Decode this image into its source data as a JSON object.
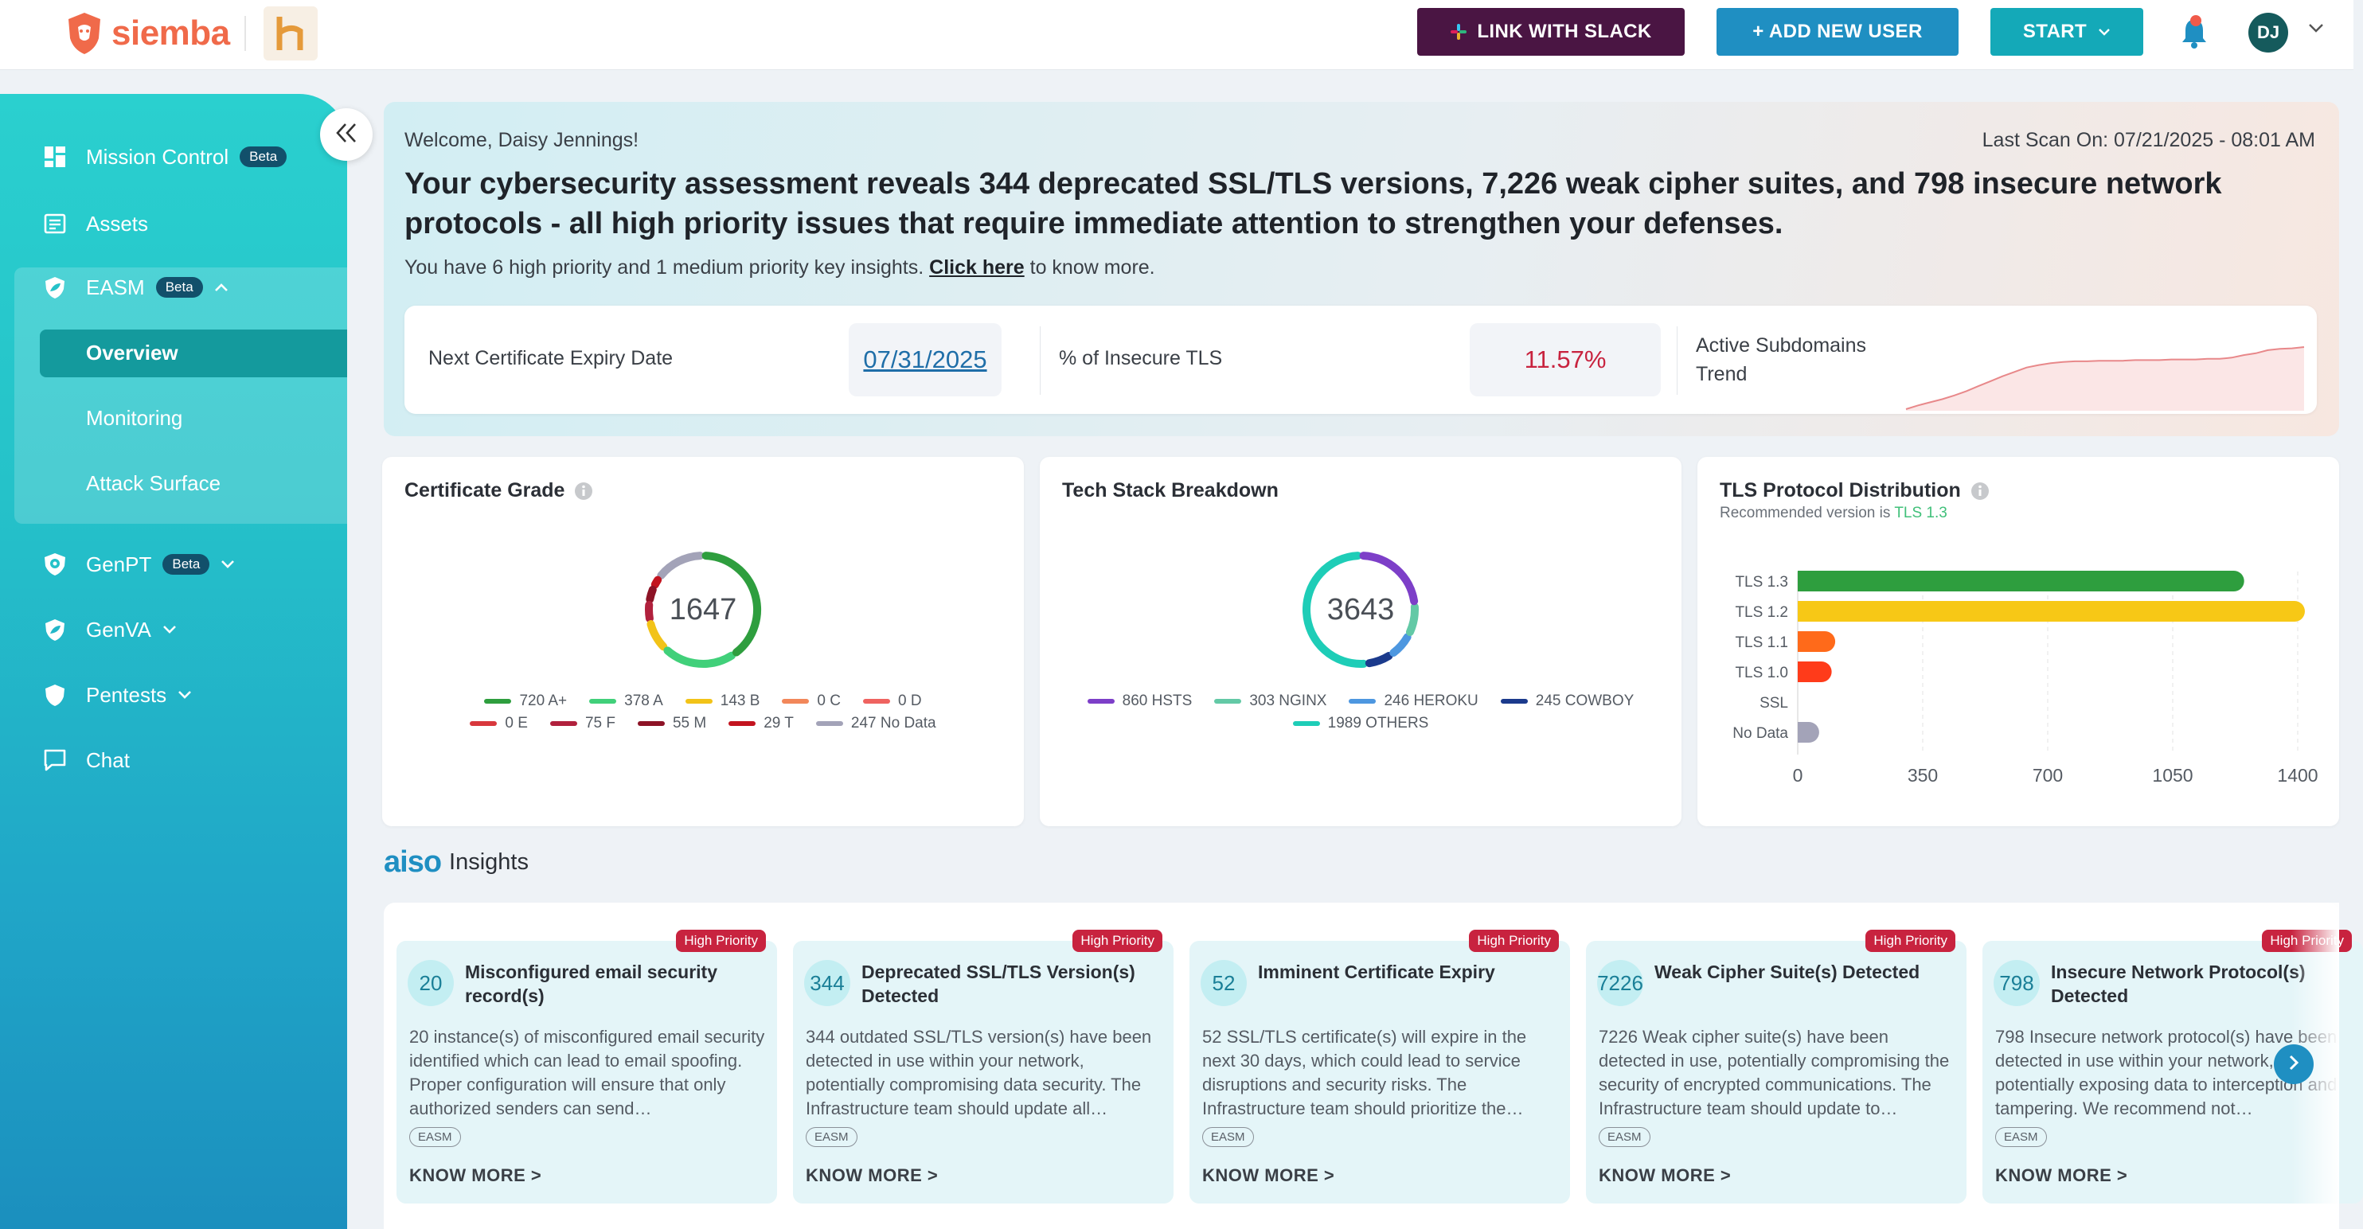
{
  "brand": {
    "name": "siemba"
  },
  "topbar": {
    "slack_label": "LINK WITH SLACK",
    "add_user_label": "+ ADD NEW USER",
    "start_label": "START",
    "avatar_initials": "DJ"
  },
  "sidebar": {
    "items": [
      {
        "label": "Mission Control",
        "badge": "Beta",
        "icon": "grid-icon"
      },
      {
        "label": "Assets",
        "icon": "list-icon"
      },
      {
        "label": "EASM",
        "badge": "Beta",
        "icon": "shield-leaf-icon"
      },
      {
        "label": "GenPT",
        "badge": "Beta",
        "icon": "shield-bug-icon"
      },
      {
        "label": "GenVA",
        "icon": "shield-leaf-icon"
      },
      {
        "label": "Pentests",
        "icon": "shield-icon"
      },
      {
        "label": "Chat",
        "icon": "chat-icon"
      }
    ],
    "easm_sub": [
      "Overview",
      "Monitoring",
      "Attack Surface"
    ],
    "active_sub": "Overview"
  },
  "hero": {
    "welcome": "Welcome, Daisy Jennings!",
    "last_scan": "Last Scan On: 07/21/2025 - 08:01 AM",
    "headline": "Your cybersecurity assessment reveals 344 deprecated SSL/TLS versions, 7,226 weak cipher suites, and 798 insecure network protocols - all high priority issues that require immediate attention to strengthen your defenses.",
    "sub_prefix": "You have 6 high priority and 1 medium priority key insights.",
    "sub_link": "Click here",
    "sub_suffix": "to know more."
  },
  "kpis": {
    "cert_expiry_label": "Next Certificate Expiry Date",
    "cert_expiry_value": "07/31/2025",
    "insecure_tls_label": "% of Insecure TLS",
    "insecure_tls_value": "11.57%",
    "subdomains_label_1": "Active Subdomains",
    "subdomains_label_2": "Trend"
  },
  "cards": {
    "cert_grade": {
      "title": "Certificate Grade",
      "total": "1647"
    },
    "tech_stack": {
      "title": "Tech Stack Breakdown",
      "total": "3643"
    },
    "tls": {
      "title": "TLS Protocol Distribution",
      "subtitle_prefix": "Recommended version is",
      "subtitle_value": "TLS 1.3"
    }
  },
  "chart_data": [
    {
      "type": "pie",
      "title": "Certificate Grade",
      "center_label": "1647",
      "series": [
        {
          "name": "A+",
          "value": 720,
          "color": "#2e9e3e"
        },
        {
          "name": "A",
          "value": 378,
          "color": "#41d07a"
        },
        {
          "name": "B",
          "value": 143,
          "color": "#f2c318"
        },
        {
          "name": "C",
          "value": 0,
          "color": "#f2875a"
        },
        {
          "name": "D",
          "value": 0,
          "color": "#ef6360"
        },
        {
          "name": "E",
          "value": 0,
          "color": "#d8383d"
        },
        {
          "name": "F",
          "value": 75,
          "color": "#b1213d"
        },
        {
          "name": "M",
          "value": 55,
          "color": "#8d1326"
        },
        {
          "name": "T",
          "value": 29,
          "color": "#c3141f"
        },
        {
          "name": "No Data",
          "value": 247,
          "color": "#a3a3b8"
        }
      ],
      "legend_labels": [
        "720 A+",
        "378 A",
        "143 B",
        "0 C",
        "0 D",
        "0 E",
        "75 F",
        "55 M",
        "29 T",
        "247 No Data"
      ]
    },
    {
      "type": "pie",
      "title": "Tech Stack Breakdown",
      "center_label": "3643",
      "series": [
        {
          "name": "HSTS",
          "value": 860,
          "color": "#7d3fc8"
        },
        {
          "name": "NGINX",
          "value": 303,
          "color": "#63c9a6"
        },
        {
          "name": "HEROKU",
          "value": 246,
          "color": "#4d97e0"
        },
        {
          "name": "COWBOY",
          "value": 245,
          "color": "#1b3a8c"
        },
        {
          "name": "OTHERS",
          "value": 1989,
          "color": "#1ecdb7"
        }
      ],
      "legend_labels": [
        "860 HSTS",
        "303 NGINX",
        "246 HEROKU",
        "245 COWBOY",
        "1989 OTHERS"
      ]
    },
    {
      "type": "bar",
      "orientation": "horizontal",
      "title": "TLS Protocol Distribution",
      "categories": [
        "TLS 1.3",
        "TLS 1.2",
        "TLS 1.1",
        "TLS 1.0",
        "SSL",
        "No Data"
      ],
      "values": [
        1250,
        1420,
        105,
        95,
        0,
        60
      ],
      "colors": [
        "#2e9e3e",
        "#f7c816",
        "#ff6a1a",
        "#ff3b1a",
        "#999999",
        "#a3a3b8"
      ],
      "xlim": [
        0,
        1400
      ],
      "xticks": [
        "0",
        "350",
        "700",
        "1050",
        "1400"
      ],
      "grid": true
    },
    {
      "type": "area",
      "title": "",
      "values": [
        0,
        6,
        11,
        16,
        22,
        29,
        37,
        45,
        53,
        60,
        67,
        71,
        74,
        76,
        77,
        77,
        78,
        78,
        78,
        79,
        79,
        79,
        80,
        80,
        80,
        81,
        81,
        83,
        87,
        90,
        95,
        97,
        98,
        100
      ],
      "grid": false
    }
  ],
  "insights": {
    "title_ai": "aiso",
    "title": "Insights",
    "items": [
      {
        "num": "20",
        "title": "Misconfigured email security record(s)",
        "priority": "High Priority",
        "desc": "20 instance(s) of misconfigured email security identified which can lead to email spoofing. Proper configuration will ensure that only authorized senders can send…",
        "tag": "EASM",
        "cta": "KNOW MORE >"
      },
      {
        "num": "344",
        "title": "Deprecated SSL/TLS Version(s) Detected",
        "priority": "High Priority",
        "desc": "344 outdated SSL/TLS version(s) have been detected in use within your network, potentially compromising data security. The Infrastructure team should update all…",
        "tag": "EASM",
        "cta": "KNOW MORE >"
      },
      {
        "num": "52",
        "title": "Imminent Certificate Expiry",
        "priority": "High Priority",
        "desc": "52 SSL/TLS certificate(s) will expire in the next 30 days, which could lead to service disruptions and security risks. The Infrastructure team should prioritize the…",
        "tag": "EASM",
        "cta": "KNOW MORE >"
      },
      {
        "num": "7226",
        "title": "Weak Cipher Suite(s) Detected",
        "priority": "High Priority",
        "desc": "7226 Weak cipher suite(s) have been detected in use, potentially compromising the security of encrypted communications. The Infrastructure team should update to…",
        "tag": "EASM",
        "cta": "KNOW MORE >"
      },
      {
        "num": "798",
        "title": "Insecure Network Protocol(s) Detected",
        "priority": "High Priority",
        "desc": "798 Insecure network protocol(s) have been detected in use within your network, potentially exposing data to interception and tampering. We recommend not…",
        "tag": "EASM",
        "cta": "KNOW MORE >"
      }
    ]
  }
}
